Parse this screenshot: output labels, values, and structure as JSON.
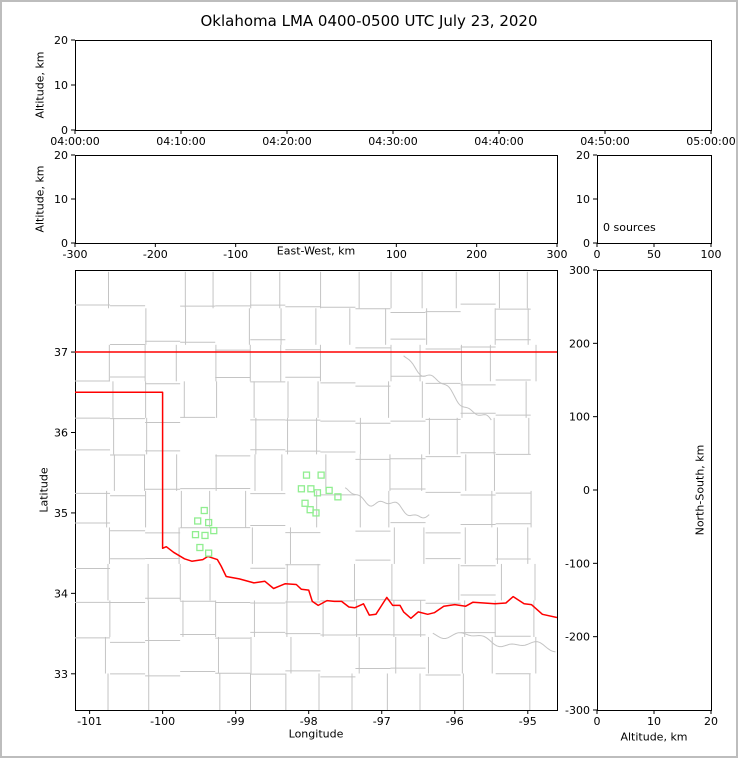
{
  "page": {
    "title": "Oklahoma LMA 0400-0500 UTC July 23, 2020"
  },
  "colors": {
    "axis": "#000000",
    "frame_border": "#bdbdbd",
    "county": "#c4c4c4",
    "state": "#ff0000",
    "station": "#90ee90",
    "background": "#ffffff"
  },
  "chart_data": [
    {
      "id": "time-height",
      "type": "scatter",
      "xlabel": "",
      "x_tick_labels": [
        "04:00:00",
        "04:10:00",
        "04:20:00",
        "04:30:00",
        "04:40:00",
        "04:50:00",
        "05:00:00"
      ],
      "ylabel": "Altitude, km",
      "ylim": [
        0,
        20
      ],
      "y_ticks": [
        0,
        10,
        20
      ],
      "points": []
    },
    {
      "id": "ew-height",
      "type": "scatter",
      "xlabel": "East-West, km",
      "xlim": [
        -300,
        300
      ],
      "x_ticks": [
        -300,
        -200,
        -100,
        100,
        200,
        300
      ],
      "ylabel": "Altitude, km",
      "ylim": [
        0,
        20
      ],
      "y_ticks": [
        0,
        10,
        20
      ],
      "points": []
    },
    {
      "id": "altitude-histogram",
      "type": "histogram",
      "annotation": "0 sources",
      "xlim": [
        0,
        100
      ],
      "x_ticks": [
        0,
        50,
        100
      ],
      "ylim": [
        0,
        20
      ],
      "y_ticks": [
        0,
        10,
        20
      ],
      "counts": []
    },
    {
      "id": "plan-view",
      "type": "scatter",
      "xlabel": "Longitude",
      "xlim": [
        -101.2,
        -94.6
      ],
      "x_ticks": [
        -101,
        -100,
        -99,
        -98,
        -97,
        -96,
        -95
      ],
      "ylabel": "Latitude",
      "ylim": [
        32.55,
        38.02
      ],
      "y_ticks": [
        33,
        34,
        35,
        36,
        37
      ],
      "sources": [],
      "lma_stations": [
        [
          -98.03,
          35.47
        ],
        [
          -97.83,
          35.47
        ],
        [
          -98.1,
          35.3
        ],
        [
          -97.97,
          35.3
        ],
        [
          -97.88,
          35.25
        ],
        [
          -97.72,
          35.28
        ],
        [
          -98.05,
          35.12
        ],
        [
          -97.98,
          35.04
        ],
        [
          -97.9,
          35.0
        ],
        [
          -97.6,
          35.2
        ],
        [
          -99.43,
          35.03
        ],
        [
          -99.52,
          34.9
        ],
        [
          -99.37,
          34.88
        ],
        [
          -99.55,
          34.73
        ],
        [
          -99.42,
          34.72
        ],
        [
          -99.3,
          34.78
        ],
        [
          -99.49,
          34.57
        ],
        [
          -99.37,
          34.5
        ]
      ],
      "state_border": {
        "north": [
          [
            -101.2,
            37.0
          ],
          [
            -94.6,
            37.0
          ]
        ],
        "west_and_red_river": [
          [
            -101.2,
            36.5
          ],
          [
            -100.0,
            36.5
          ],
          [
            -100.0,
            34.56
          ],
          [
            -99.95,
            34.58
          ],
          [
            -99.85,
            34.51
          ],
          [
            -99.7,
            34.43
          ],
          [
            -99.6,
            34.4
          ],
          [
            -99.45,
            34.42
          ],
          [
            -99.38,
            34.46
          ],
          [
            -99.25,
            34.42
          ],
          [
            -99.2,
            34.34
          ],
          [
            -99.13,
            34.21
          ],
          [
            -98.95,
            34.18
          ],
          [
            -98.75,
            34.13
          ],
          [
            -98.6,
            34.15
          ],
          [
            -98.48,
            34.06
          ],
          [
            -98.4,
            34.09
          ],
          [
            -98.32,
            34.12
          ],
          [
            -98.17,
            34.11
          ],
          [
            -98.1,
            34.05
          ],
          [
            -98.0,
            34.04
          ],
          [
            -97.95,
            33.9
          ],
          [
            -97.87,
            33.85
          ],
          [
            -97.75,
            33.91
          ],
          [
            -97.65,
            33.9
          ],
          [
            -97.55,
            33.9
          ],
          [
            -97.45,
            33.83
          ],
          [
            -97.37,
            33.82
          ],
          [
            -97.25,
            33.87
          ],
          [
            -97.17,
            33.73
          ],
          [
            -97.08,
            33.74
          ],
          [
            -96.93,
            33.95
          ],
          [
            -96.85,
            33.85
          ],
          [
            -96.75,
            33.85
          ],
          [
            -96.7,
            33.77
          ],
          [
            -96.6,
            33.69
          ],
          [
            -96.5,
            33.77
          ],
          [
            -96.37,
            33.74
          ],
          [
            -96.28,
            33.76
          ],
          [
            -96.15,
            33.84
          ],
          [
            -96.0,
            33.86
          ],
          [
            -95.85,
            33.84
          ],
          [
            -95.75,
            33.89
          ],
          [
            -95.6,
            33.88
          ],
          [
            -95.45,
            33.87
          ],
          [
            -95.3,
            33.88
          ],
          [
            -95.2,
            33.96
          ],
          [
            -95.05,
            33.87
          ],
          [
            -94.95,
            33.86
          ],
          [
            -94.8,
            33.74
          ],
          [
            -94.6,
            33.7
          ]
        ]
      }
    },
    {
      "id": "ns-height",
      "type": "scatter",
      "xlabel": "Altitude, km",
      "xlim": [
        0,
        20
      ],
      "x_ticks": [
        0,
        10,
        20
      ],
      "ylabel": "North-South, km",
      "ylim": [
        -300,
        300
      ],
      "y_ticks": [
        -300,
        -200,
        -100,
        0,
        100,
        200,
        300
      ],
      "points": []
    }
  ]
}
